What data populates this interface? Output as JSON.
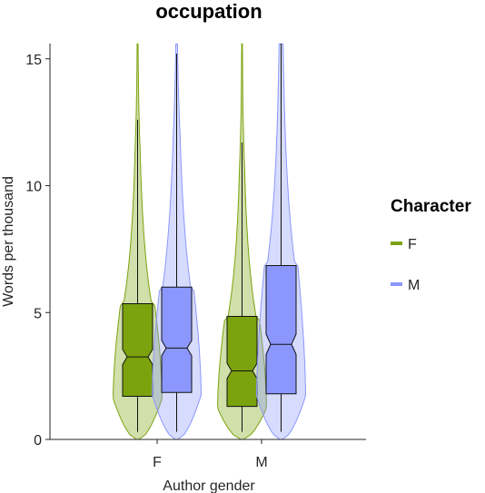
{
  "chart_data": {
    "type": "violin+box",
    "title": "occupation",
    "xlabel": "Author gender",
    "ylabel": "Words per thousand",
    "categories": [
      "F",
      "M"
    ],
    "ylim": [
      0,
      15.6
    ],
    "yticks": [
      0,
      5,
      10,
      15
    ],
    "grid": false,
    "legend": {
      "title": "Character",
      "position": "right",
      "entries": [
        "F",
        "M"
      ]
    },
    "series": [
      {
        "name": "F",
        "color": "#7ba30d",
        "boxes": [
          {
            "category": "F",
            "whisker_low": 0.3,
            "q1": 1.7,
            "median": 3.25,
            "q3": 5.35,
            "whisker_high": 12.6,
            "notch_low": 2.95,
            "notch_high": 3.55,
            "violin_max": 15.6
          },
          {
            "category": "M",
            "whisker_low": 0.3,
            "q1": 1.3,
            "median": 2.7,
            "q3": 4.85,
            "whisker_high": 11.7,
            "notch_low": 2.4,
            "notch_high": 3.0,
            "violin_max": 15.6
          }
        ]
      },
      {
        "name": "M",
        "color": "#8b97fc",
        "boxes": [
          {
            "category": "F",
            "whisker_low": 0.3,
            "q1": 1.85,
            "median": 3.6,
            "q3": 6.0,
            "whisker_high": 15.2,
            "notch_low": 3.3,
            "notch_high": 3.9,
            "violin_max": 15.6
          },
          {
            "category": "M",
            "whisker_low": 0.3,
            "q1": 1.8,
            "median": 3.75,
            "q3": 6.85,
            "whisker_high": 15.6,
            "notch_low": 3.35,
            "notch_high": 4.15,
            "violin_max": 15.6
          }
        ]
      }
    ]
  }
}
